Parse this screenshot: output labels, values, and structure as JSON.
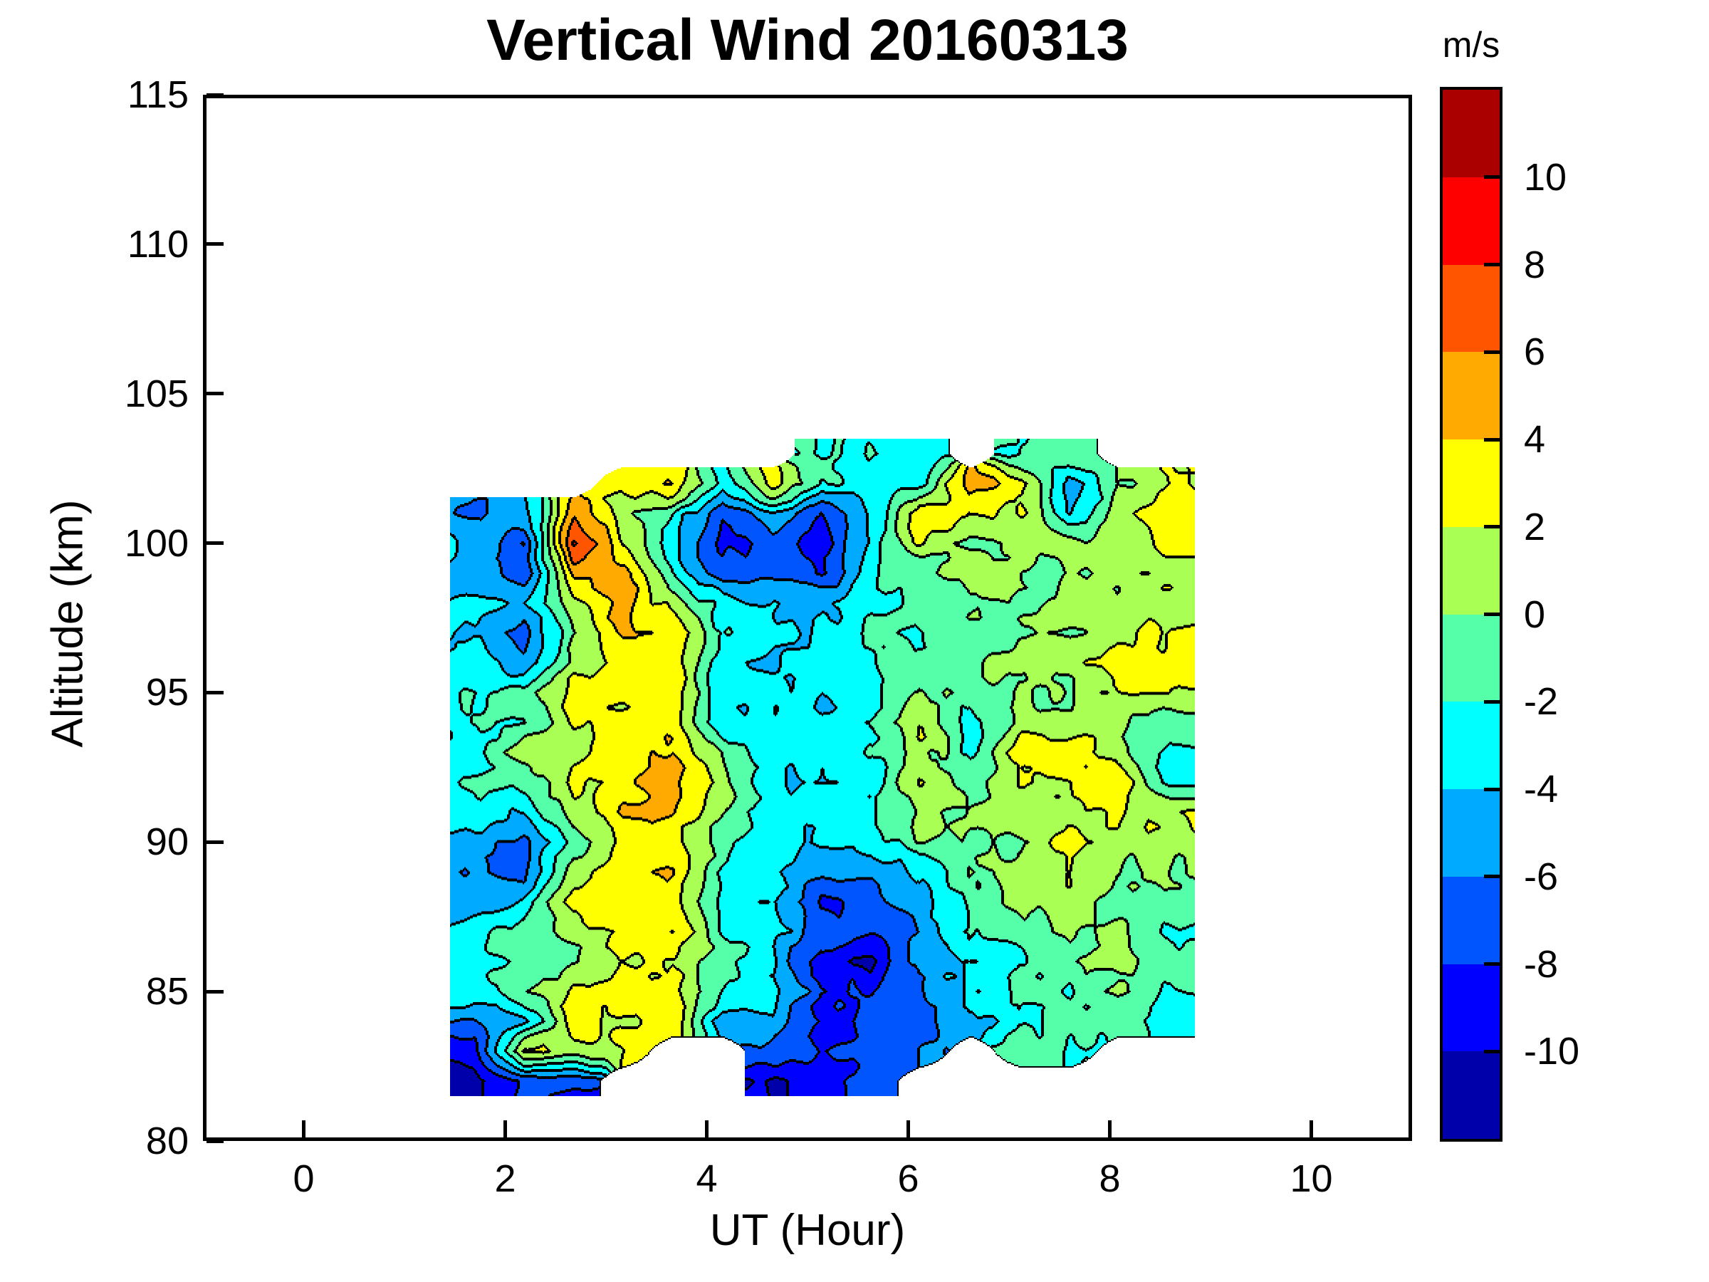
{
  "chart_data": {
    "type": "filled_contour",
    "title": "Vertical Wind 20160313",
    "xlabel": "UT (Hour)",
    "ylabel": "Altitude (km)",
    "xlim": [
      -1,
      11
    ],
    "ylim": [
      80,
      115
    ],
    "xticks": [
      0,
      2,
      4,
      6,
      8,
      10
    ],
    "yticks": [
      115,
      110,
      105,
      100,
      95,
      90,
      85,
      80
    ],
    "grid": false,
    "contour_line_color": "#000000",
    "background_color": "#FFFFFF",
    "axis_color": "#000000",
    "colorbar": {
      "label": "m/s",
      "ticks_top_to_bottom": [
        10,
        8,
        6,
        4,
        2,
        0,
        -2,
        -4,
        -6,
        -8,
        -10
      ],
      "levels": [
        -12,
        -10,
        -8,
        -6,
        -4,
        -2,
        0,
        2,
        4,
        6,
        8,
        10,
        12
      ],
      "colors_bottom_to_top": [
        "#0000AA",
        "#0000FF",
        "#0055FF",
        "#00AAFF",
        "#00FFFF",
        "#55FFAA",
        "#AAFF55",
        "#FFFF00",
        "#FFAA00",
        "#FF5500",
        "#FF0000",
        "#AA0000"
      ]
    },
    "x": [
      1.7,
      2.19,
      2.69,
      3.18,
      3.67,
      4.16,
      4.66,
      5.15,
      5.64,
      6.14,
      6.63,
      7.12,
      7.61,
      8.11,
      8.6
    ],
    "altitudes": [
      82,
      83,
      84,
      85,
      86,
      87,
      88,
      89,
      90,
      91,
      92,
      93,
      94,
      95,
      96,
      97,
      98,
      99,
      100,
      101,
      102,
      103
    ],
    "values_by_altitude_row": [
      [
        -11,
        -8,
        -8,
        null,
        null,
        null,
        -10,
        -9,
        -7,
        null,
        null,
        null,
        null,
        null,
        null
      ],
      [
        -9,
        3,
        1,
        2,
        null,
        null,
        -7,
        -8,
        -8,
        -6,
        null,
        -1,
        -2,
        null,
        null
      ],
      [
        -6,
        -4,
        3,
        2,
        3,
        -5,
        -4,
        -9,
        -7,
        -7,
        -5,
        -2,
        -1,
        -2,
        -3
      ],
      [
        -3,
        -1,
        2,
        3,
        3,
        -2,
        -3,
        -8,
        -8,
        -6,
        -3,
        -1,
        -2,
        0,
        -2
      ],
      [
        -2,
        -2,
        0,
        2,
        2,
        -1,
        -4,
        -9,
        -10,
        -5,
        -4,
        -2,
        -1,
        1,
        -1
      ],
      [
        -3,
        -1,
        1,
        3,
        4,
        -2,
        -3,
        -7,
        -8,
        -6,
        -2,
        -1,
        0,
        0,
        -2
      ],
      [
        -5,
        -4,
        3,
        4,
        3,
        -3,
        -4,
        -8,
        -7,
        -5,
        -1,
        0,
        1,
        -1,
        -1
      ],
      [
        -6,
        -7,
        1,
        3,
        4,
        -2,
        -3,
        -6,
        -6,
        -4,
        0,
        1,
        2,
        0,
        0
      ],
      [
        -5,
        -6,
        -1,
        3,
        3,
        -1,
        -4,
        -4,
        -3,
        0,
        -1,
        0,
        3,
        1,
        1
      ],
      [
        -3,
        -4,
        1,
        4,
        4,
        0,
        -3,
        -3,
        -2,
        1,
        0,
        1,
        1,
        2,
        2
      ],
      [
        -2,
        -1,
        2,
        3,
        5,
        1,
        -4,
        -4,
        -3,
        2,
        -1,
        2,
        2,
        3,
        -2
      ],
      [
        -3,
        1,
        1,
        4,
        4,
        0,
        -3,
        -3,
        -2,
        1,
        -2,
        3,
        3,
        1,
        -3
      ],
      [
        -2,
        -2,
        2,
        3,
        3,
        -3,
        -4,
        -4,
        -2,
        2,
        -3,
        1,
        1,
        0,
        -1
      ],
      [
        -2,
        -1,
        3,
        2,
        3,
        -4,
        -3,
        -4,
        -3,
        0,
        -1,
        0,
        0,
        2,
        2
      ],
      [
        -3,
        -6,
        1,
        3,
        4,
        -3,
        -4,
        -3,
        -2,
        -1,
        0,
        1,
        1,
        3,
        3
      ],
      [
        -4,
        -7,
        0,
        4,
        3,
        -2,
        -3,
        -4,
        -2,
        -2,
        -1,
        0,
        0,
        2,
        2
      ],
      [
        -3,
        -4,
        2,
        5,
        1,
        -3,
        -4,
        -5,
        -3,
        -1,
        0,
        -1,
        1,
        0,
        1
      ],
      [
        -5,
        -7,
        4,
        5,
        -2,
        -7,
        -6,
        -8,
        -2,
        -1,
        1,
        0,
        0,
        1,
        2
      ],
      [
        -4,
        -8,
        9,
        2,
        -4,
        -9,
        -7,
        -9,
        -3,
        2,
        0,
        1,
        1,
        0,
        3
      ],
      [
        -6,
        -5,
        5,
        1,
        -2,
        -8,
        -4,
        -8,
        -4,
        4,
        2,
        2,
        -4,
        1,
        3
      ],
      [
        null,
        null,
        null,
        3,
        4,
        -3,
        3,
        -2,
        -3,
        -2,
        5,
        3,
        -5,
        0,
        2
      ],
      [
        null,
        null,
        null,
        null,
        null,
        null,
        null,
        -2,
        -2,
        -3,
        null,
        -2,
        -1,
        null,
        null
      ]
    ]
  }
}
